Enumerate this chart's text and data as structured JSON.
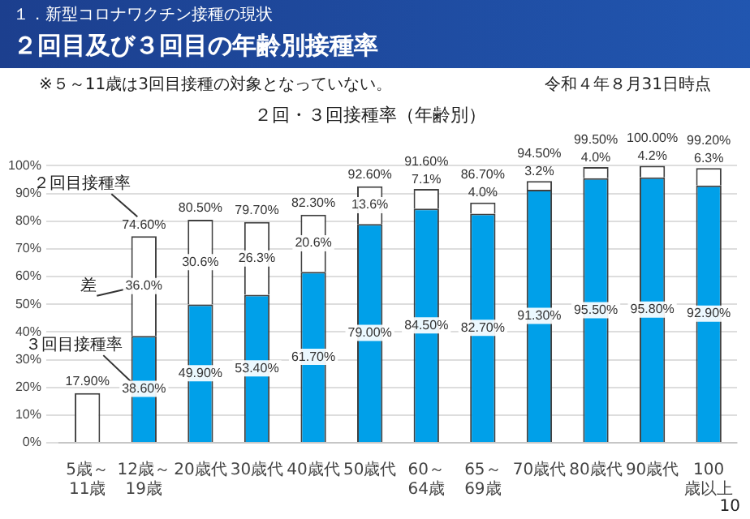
{
  "chart_data": {
    "type": "bar",
    "title": "２回目及び３回目の年齢別接種率",
    "subtitle": "２回・３回接種率（年齢別）",
    "categories": [
      "5歳～11歳",
      "12歳～19歳",
      "20歳代",
      "30歳代",
      "40歳代",
      "50歳代",
      "60～64歳",
      "65～69歳",
      "70歳代",
      "80歳代",
      "90歳代",
      "100歳以上"
    ],
    "stacked": true,
    "series": [
      {
        "name": "３回目接種率",
        "color": "#00a0e9",
        "values": [
          null,
          38.6,
          49.9,
          53.4,
          61.7,
          79.0,
          84.5,
          82.7,
          91.3,
          95.5,
          95.8,
          92.9
        ],
        "value_labels": [
          null,
          "38.60%",
          "49.90%",
          "53.40%",
          "61.70%",
          "79.00%",
          "84.50%",
          "82.70%",
          "91.30%",
          "95.50%",
          "95.80%",
          "92.90%"
        ]
      },
      {
        "name": "差",
        "color": "#ffffff",
        "values": [
          17.9,
          36.0,
          30.6,
          26.3,
          20.6,
          13.6,
          7.1,
          4.0,
          3.2,
          4.0,
          4.2,
          6.3
        ],
        "value_labels": [
          null,
          "36.0%",
          "30.6%",
          "26.3%",
          "20.6%",
          "13.6%",
          "7.1%",
          "4.0%",
          "3.2%",
          "4.0%",
          "4.2%",
          "6.3%"
        ]
      }
    ],
    "totals": [
      "17.90%",
      "74.60%",
      "80.50%",
      "79.70%",
      "82.30%",
      "92.60%",
      "91.60%",
      "86.70%",
      "94.50%",
      "99.50%",
      "100.00%",
      "99.20%"
    ],
    "ylim": [
      0,
      100
    ],
    "yticks": [
      {
        "value": 0,
        "label": "0%"
      },
      {
        "value": 10,
        "label": "10%"
      },
      {
        "value": 20,
        "label": "20%"
      },
      {
        "value": 30,
        "label": "30%"
      },
      {
        "value": 40,
        "label": "40%"
      },
      {
        "value": 50,
        "label": "50%"
      },
      {
        "value": 60,
        "label": "60%"
      },
      {
        "value": 70,
        "label": "70%"
      },
      {
        "value": 80,
        "label": "80%"
      },
      {
        "value": 90,
        "label": "90%"
      },
      {
        "value": 100,
        "label": "100%"
      }
    ],
    "grid": "y",
    "legend": false,
    "annotations": [
      "１．新型コロナワクチン接種の現状",
      "※５～11歳は3回目接種の対象となっていない。",
      "令和４年８月31日時点",
      {
        "text": "２回目接種率",
        "x": "12歳～19歳",
        "y": 74.6
      },
      "10"
    ]
  }
}
